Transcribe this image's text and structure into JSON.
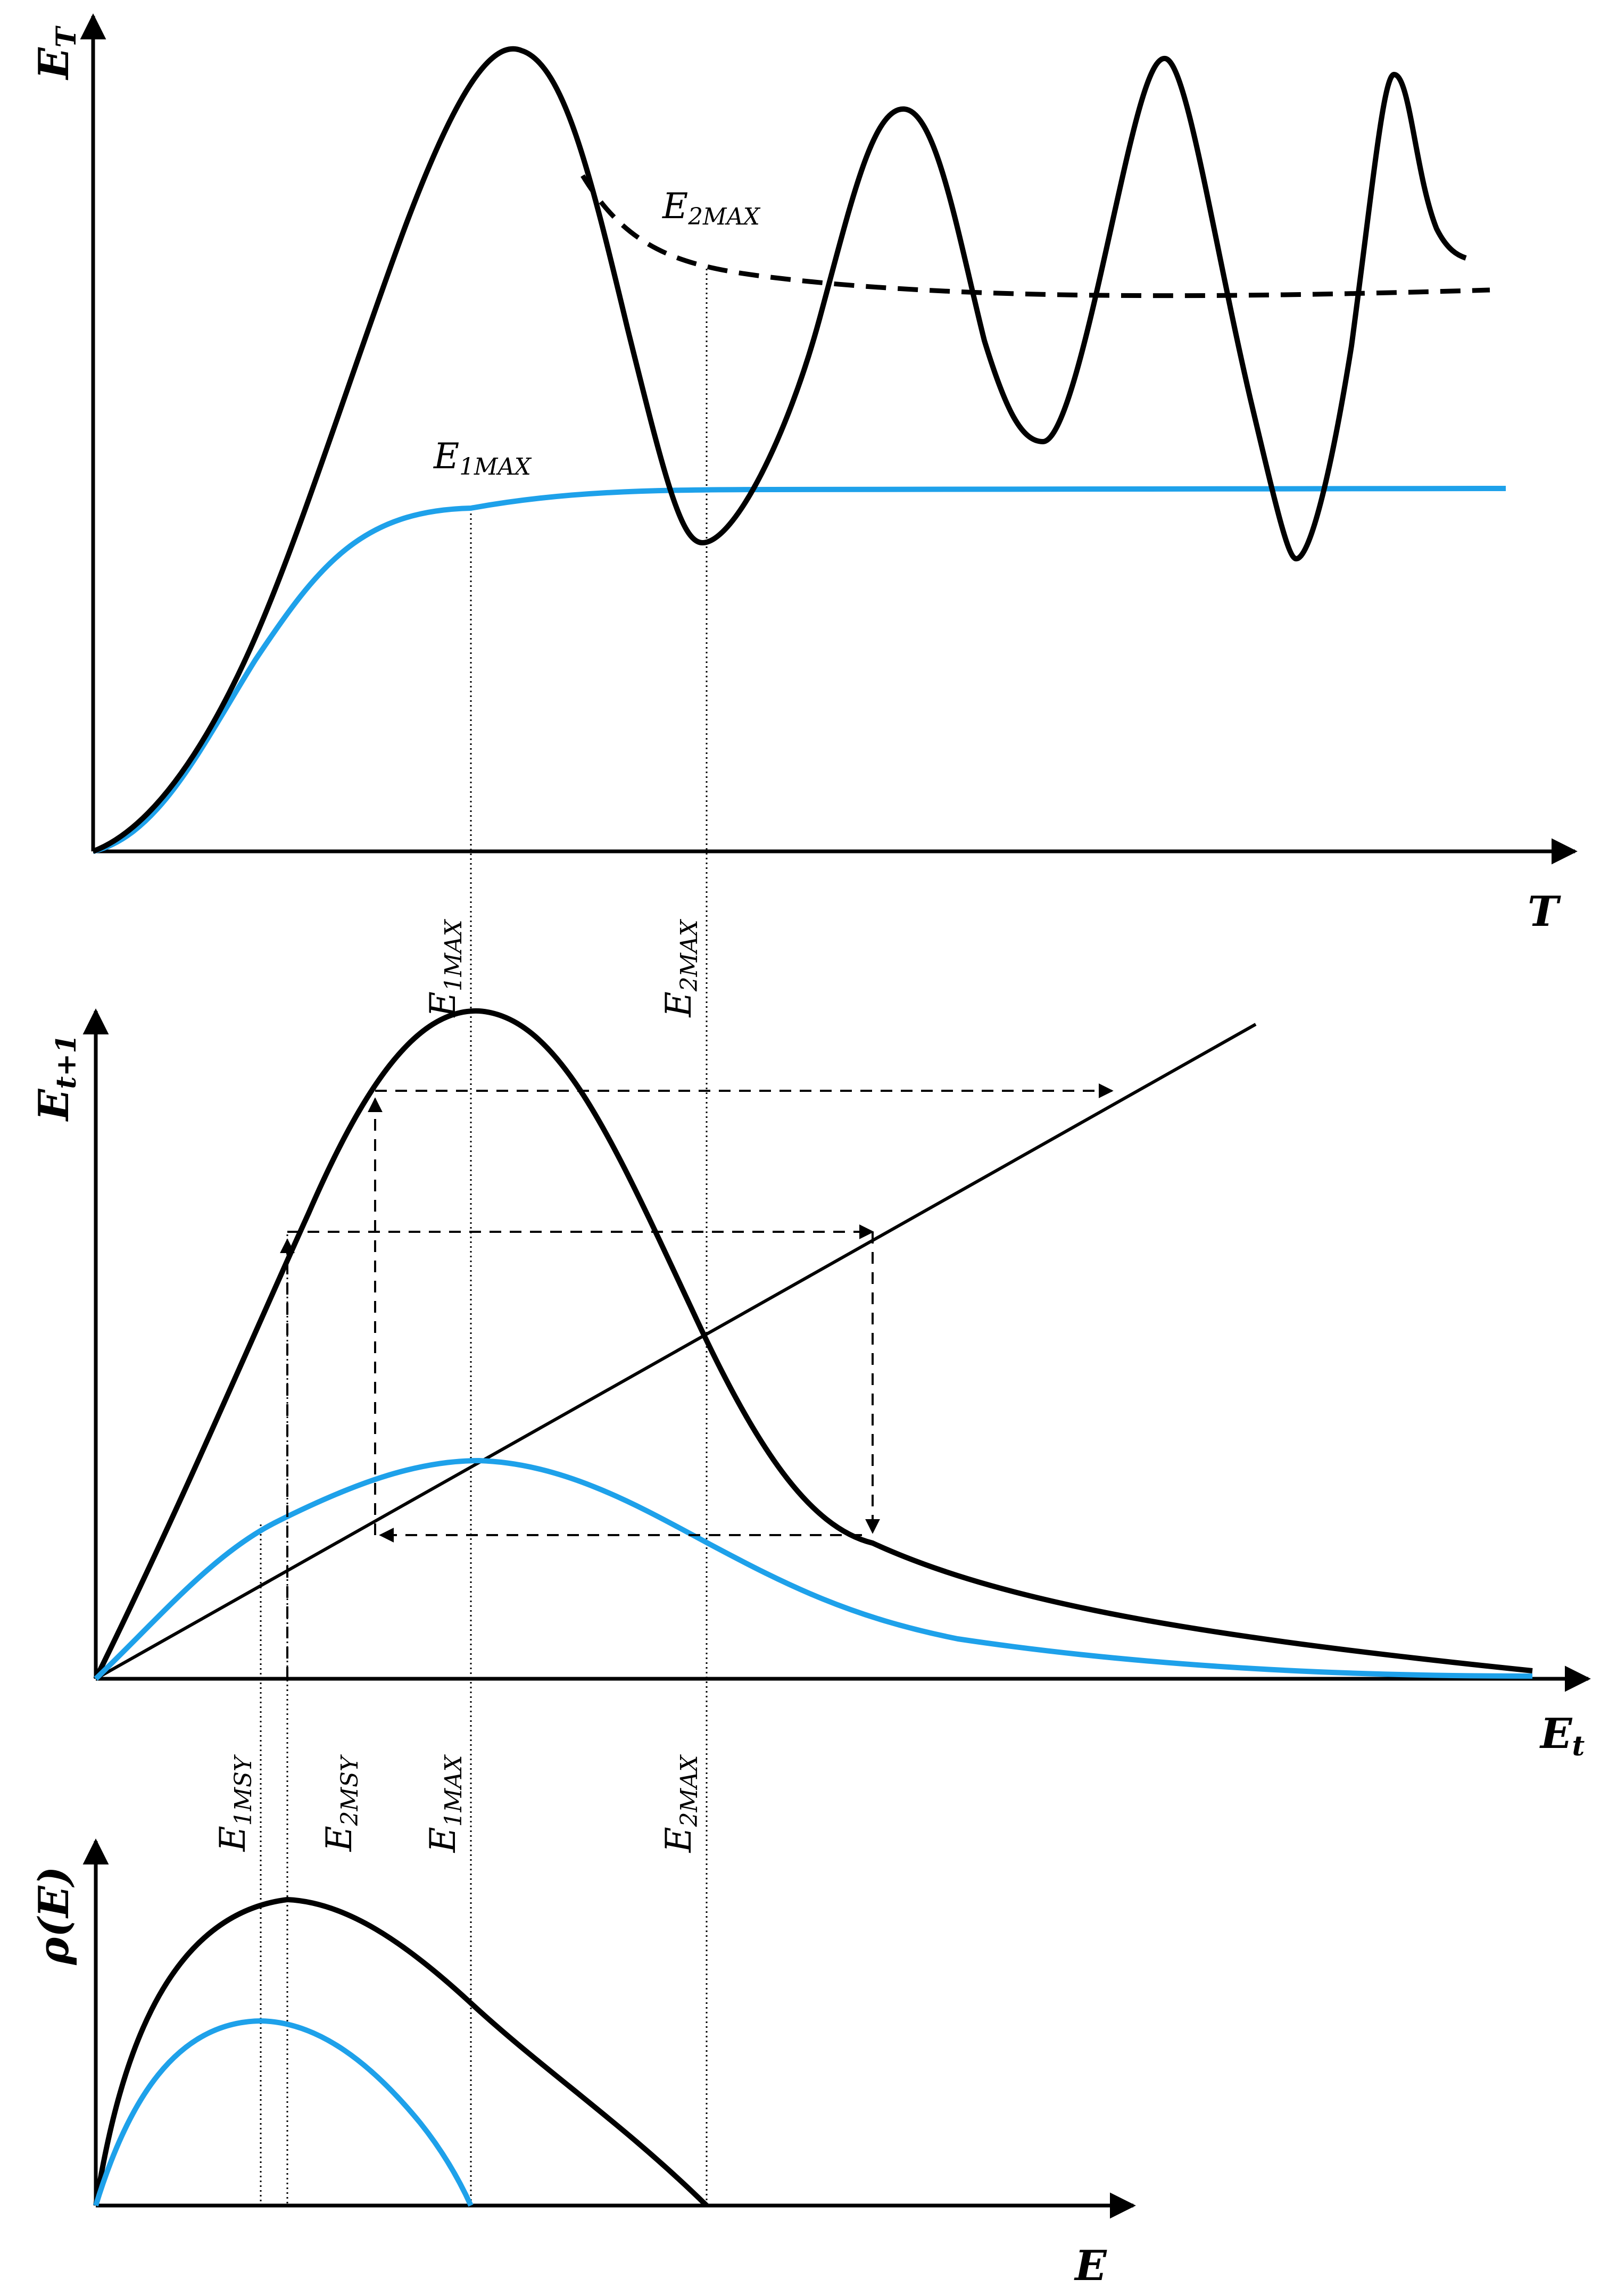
{
  "colors": {
    "black_curve": "#000000",
    "blue_curve": "#1ea1ea",
    "background": "#ffffff"
  },
  "top_panel": {
    "y_axis": {
      "main": "E",
      "sub": "T"
    },
    "x_axis": {
      "main": "T"
    },
    "labels": {
      "e2max": {
        "main": "E",
        "sub": "2MAX"
      },
      "e1max": {
        "main": "E",
        "sub": "1MAX"
      }
    }
  },
  "middle_panel": {
    "y_axis": {
      "main": "E",
      "sub": "t+1"
    },
    "x_axis": {
      "main": "E",
      "sub": "t"
    },
    "markers": {
      "e1max": {
        "main": "E",
        "sub": "1MAX"
      },
      "e2max": {
        "main": "E",
        "sub": "2MAX"
      }
    }
  },
  "bottom_panel": {
    "y_axis": {
      "main": "ρ(E)"
    },
    "x_axis": {
      "main": "E"
    },
    "markers": {
      "e1msy": {
        "main": "E",
        "sub": "1MSY"
      },
      "e2msy": {
        "main": "E",
        "sub": "2MSY"
      },
      "e1max": {
        "main": "E",
        "sub": "1MAX"
      },
      "e2max": {
        "main": "E",
        "sub": "2MAX"
      }
    }
  }
}
